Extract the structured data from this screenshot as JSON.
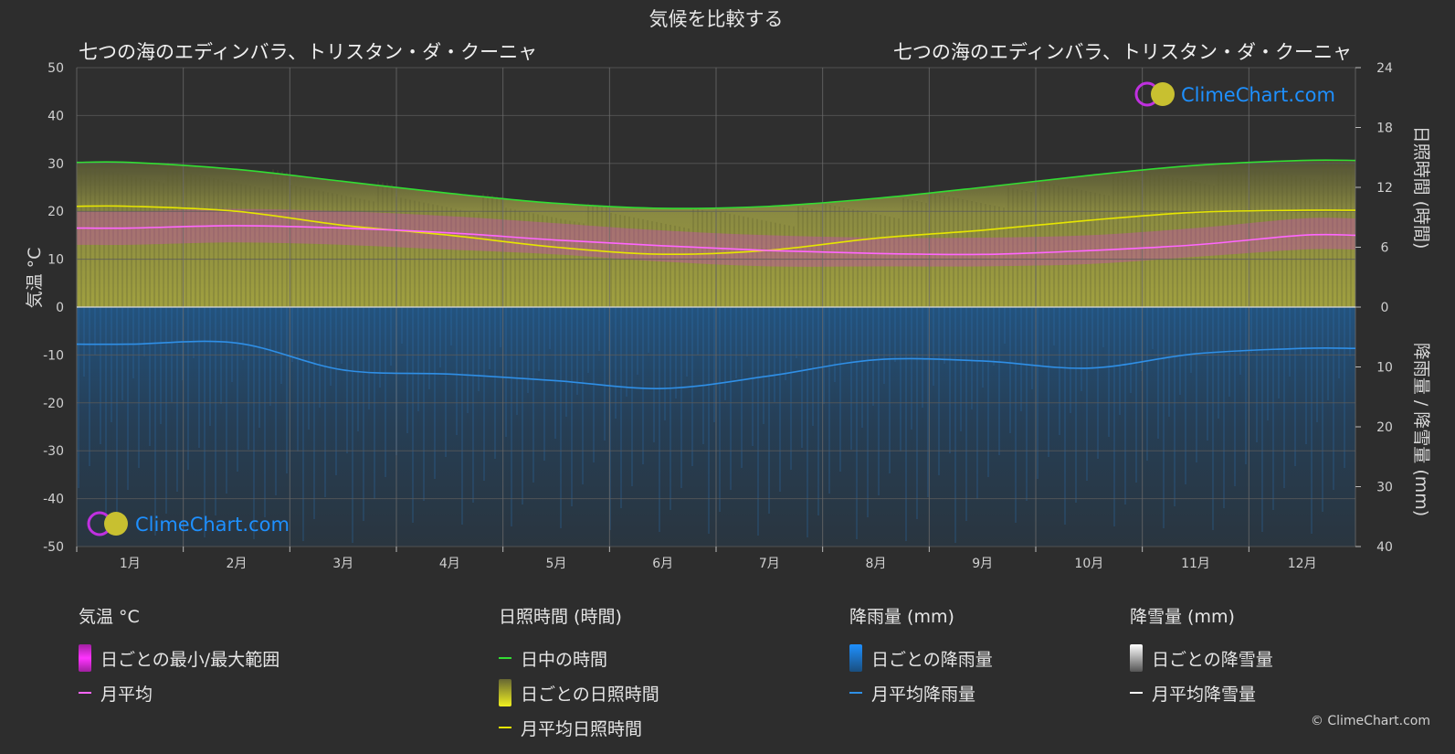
{
  "title": "気候を比較する",
  "location_left": "七つの海のエディンバラ、トリスタン・ダ・クーニャ",
  "location_right": "七つの海のエディンバラ、トリスタン・ダ・クーニャ",
  "watermark": "ClimeChart.com",
  "credit": "© ClimeChart.com",
  "colors": {
    "background": "#2d2d2d",
    "plot_background": "#2f2f2f",
    "daylight": "#33dd33",
    "sunshine": "#e6e600",
    "sunshine_band": "#8c8c3c",
    "temp_band": "#e24fd6",
    "temp_avg": "#ff66ff",
    "rain": "#1e7fd6",
    "rain_avg": "#2f8fe6",
    "snow_avg": "#ffffff",
    "watermark_text": "#1e90ff"
  },
  "chart_data": {
    "type": "line",
    "categories": [
      "1月",
      "2月",
      "3月",
      "4月",
      "5月",
      "6月",
      "7月",
      "8月",
      "9月",
      "10月",
      "11月",
      "12月"
    ],
    "axes": {
      "left": {
        "label": "気温 °C",
        "ylim": [
          -50,
          50
        ],
        "ticks": [
          50,
          40,
          30,
          20,
          10,
          0,
          -10,
          -20,
          -30,
          -40,
          -50
        ]
      },
      "right_top": {
        "label": "日照時間 (時間)",
        "ylim": [
          0,
          24
        ],
        "ticks": [
          24,
          18,
          12,
          6,
          0
        ]
      },
      "right_bottom": {
        "label": "降雨量 / 降雪量 (mm)",
        "ylim": [
          0,
          40
        ],
        "ticks": [
          0,
          10,
          20,
          30,
          40
        ],
        "inverted": true
      }
    },
    "grid": true,
    "series": [
      {
        "name": "日中の時間",
        "axis": "hours",
        "values": [
          14.5,
          13.8,
          12.6,
          11.4,
          10.4,
          9.9,
          10.1,
          10.9,
          12.0,
          13.2,
          14.2,
          14.7
        ]
      },
      {
        "name": "月平均日照時間",
        "axis": "hours",
        "values": [
          10.1,
          9.6,
          8.2,
          7.2,
          6.0,
          5.3,
          5.7,
          6.9,
          7.7,
          8.7,
          9.5,
          9.7
        ]
      },
      {
        "name": "月平均",
        "axis": "temp",
        "values": [
          16.5,
          17.0,
          16.5,
          15.5,
          14.0,
          12.8,
          11.8,
          11.2,
          11.0,
          11.8,
          13.0,
          15.0
        ]
      },
      {
        "name": "月平均降雨量",
        "axis": "mm",
        "values": [
          6.2,
          6.0,
          10.5,
          11.2,
          12.3,
          13.6,
          11.5,
          8.8,
          9.0,
          10.2,
          7.8,
          6.9
        ]
      },
      {
        "name": "月平均降雪量",
        "axis": "mm",
        "values": [
          0,
          0,
          0,
          0,
          0,
          0,
          0,
          0,
          0,
          0,
          0,
          0
        ]
      }
    ],
    "temp_range_band": {
      "min": [
        13.0,
        13.5,
        13.0,
        12.0,
        11.0,
        9.5,
        8.5,
        8.5,
        8.5,
        9.0,
        10.5,
        12.0
      ],
      "max": [
        20.0,
        20.5,
        20.0,
        19.0,
        17.5,
        16.0,
        15.0,
        14.5,
        14.5,
        15.0,
        16.5,
        18.5
      ]
    }
  },
  "legend": {
    "temperature": {
      "header": "気温 °C",
      "range_label": "日ごとの最小/最大範囲",
      "avg_label": "月平均"
    },
    "sunshine": {
      "header": "日照時間 (時間)",
      "daylight_label": "日中の時間",
      "daily_label": "日ごとの日照時間",
      "avg_label": "月平均日照時間"
    },
    "rain": {
      "header": "降雨量 (mm)",
      "daily_label": "日ごとの降雨量",
      "avg_label": "月平均降雨量"
    },
    "snow": {
      "header": "降雪量 (mm)",
      "daily_label": "日ごとの降雪量",
      "avg_label": "月平均降雪量"
    }
  }
}
